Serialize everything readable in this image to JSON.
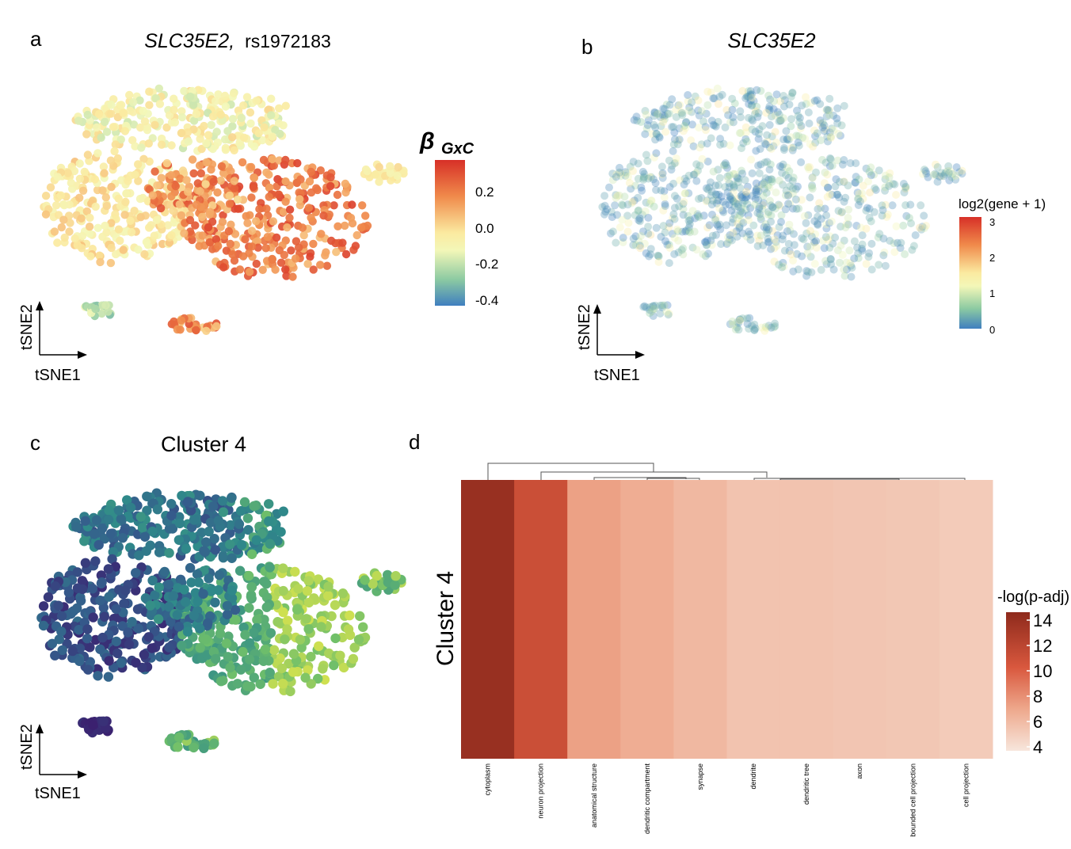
{
  "panels": {
    "a": {
      "letter": "a",
      "title_gene": "SLC35E2,",
      "title_snp": "rs1972183",
      "legend_title_main": "β",
      "legend_title_sub": "GxC",
      "legend_ticks": [
        "0.2",
        "0.0",
        "-0.2",
        "-0.4"
      ],
      "xaxis": "tSNE1",
      "yaxis": "tSNE2"
    },
    "b": {
      "letter": "b",
      "title": "SLC35E2",
      "legend_title": "log2(gene + 1)",
      "legend_ticks": [
        "3",
        "2",
        "1",
        "0"
      ],
      "xaxis": "tSNE1",
      "yaxis": "tSNE2"
    },
    "c": {
      "letter": "c",
      "title": "Cluster 4",
      "xaxis": "tSNE1",
      "yaxis": "tSNE2"
    },
    "d": {
      "letter": "d",
      "row_label": "Cluster 4",
      "legend_title": "-log(p-adj)",
      "legend_ticks": [
        "14",
        "12",
        "10",
        "8",
        "6",
        "4"
      ]
    }
  },
  "chart_data": [
    {
      "panel": "a",
      "type": "scatter",
      "title": "SLC35E2, rs1972183",
      "xlabel": "tSNE1",
      "ylabel": "tSNE2",
      "color_variable": "βGxC",
      "color_range": [
        -0.45,
        0.35
      ],
      "colorbar_ticks": [
        0.2,
        0.0,
        -0.2,
        -0.4
      ],
      "colors": {
        "low": "#3f7fbf",
        "mid": "#fbfac0",
        "high": "#d73027"
      }
    },
    {
      "panel": "b",
      "type": "scatter",
      "title": "SLC35E2",
      "xlabel": "tSNE1",
      "ylabel": "tSNE2",
      "color_variable": "log2(gene + 1)",
      "color_range": [
        0,
        3
      ],
      "colorbar_ticks": [
        3,
        2,
        1,
        0
      ],
      "colors": {
        "low": "#3f7fbf",
        "mid": "#fbfac0",
        "high": "#d73027"
      }
    },
    {
      "panel": "c",
      "type": "scatter",
      "title": "Cluster 4",
      "xlabel": "tSNE1",
      "ylabel": "tSNE2",
      "colors": {
        "low": "#3b1e6e",
        "mid": "#2f8a8a",
        "high": "#e7e84a"
      }
    },
    {
      "panel": "d",
      "type": "heatmap",
      "row": "Cluster 4",
      "categories": [
        "cytoplasm",
        "neuron projection",
        "anatomical structure",
        "dendritic compartment",
        "synapse",
        "dendrite",
        "dendritic tree",
        "axon",
        "bounded cell projection",
        "cell projection"
      ],
      "values": [
        14.2,
        11.2,
        7.2,
        6.6,
        6.0,
        5.4,
        5.4,
        5.3,
        5.2,
        5.0
      ],
      "colorbar_ticks": [
        14,
        12,
        10,
        8,
        6,
        4
      ],
      "color_range": [
        3.5,
        14.8
      ],
      "colors": {
        "low": "#f7e6dc",
        "high": "#8e2a1c"
      }
    }
  ]
}
